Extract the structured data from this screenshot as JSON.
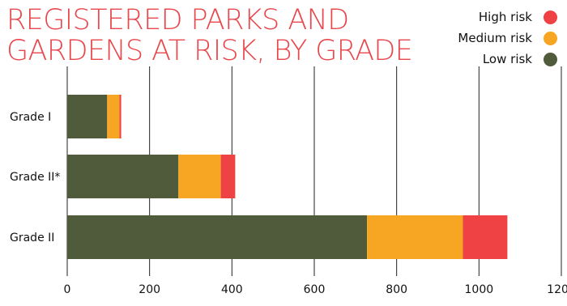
{
  "chart_data": {
    "type": "bar",
    "orientation": "horizontal",
    "stacked": true,
    "title_lines": [
      "REGISTERED PARKS AND",
      "GARDENS AT RISK, BY GRADE"
    ],
    "categories": [
      "Grade I",
      "Grade II*",
      "Grade II"
    ],
    "series": [
      {
        "name": "Low risk",
        "color": "#4f5b3a",
        "values": [
          97,
          270,
          728
        ]
      },
      {
        "name": "Medium risk",
        "color": "#f6a623",
        "values": [
          30,
          103,
          233
        ]
      },
      {
        "name": "High risk",
        "color": "#ee4244",
        "values": [
          4,
          35,
          108
        ]
      }
    ],
    "legend_order": [
      "High risk",
      "Medium risk",
      "Low risk"
    ],
    "legend_position": "top-right",
    "xlim": [
      0,
      1200
    ],
    "xticks": [
      "0",
      "200",
      "400",
      "600",
      "800",
      "1000",
      "1200"
    ],
    "grid": "vertical",
    "title_color": "#e8474c"
  }
}
